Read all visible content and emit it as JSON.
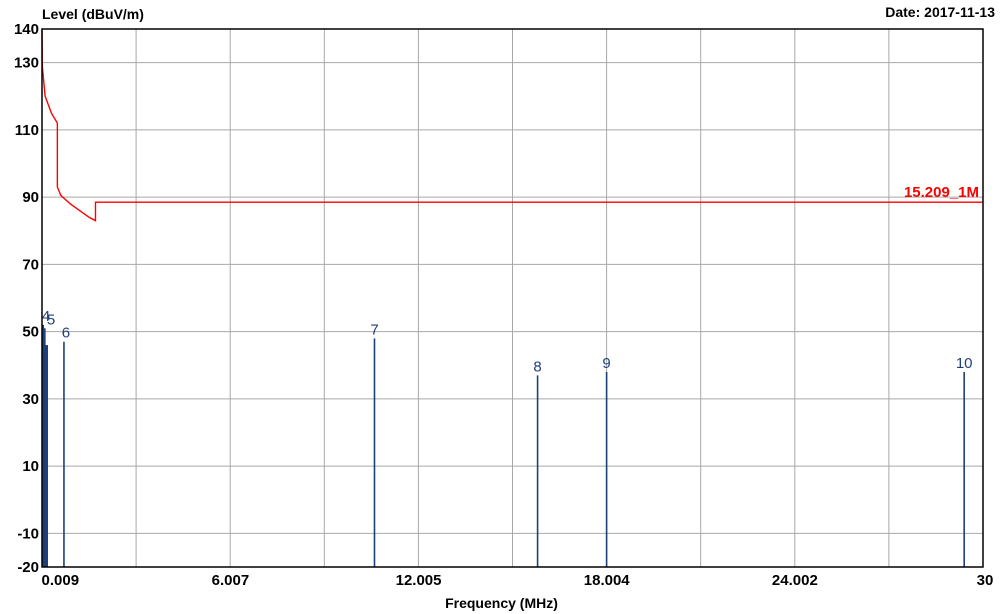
{
  "chart_data": {
    "type": "line",
    "ylabel": "Level (dBuV/m)",
    "xlabel": "Frequency (MHz)",
    "date_label": "Date:",
    "date": "2017-11-13",
    "xlim": [
      0,
      30
    ],
    "ylim": [
      -20,
      140
    ],
    "x_ticks": [
      {
        "value": 0.009,
        "label": "0.009"
      },
      {
        "value": 6.007,
        "label": "6.007"
      },
      {
        "value": 12.005,
        "label": "12.005"
      },
      {
        "value": 18.004,
        "label": "18.004"
      },
      {
        "value": 24.002,
        "label": "24.002"
      },
      {
        "value": 30,
        "label": "30"
      }
    ],
    "y_ticks": [
      {
        "value": -20,
        "label": "-20"
      },
      {
        "value": -10,
        "label": "-10"
      },
      {
        "value": 10,
        "label": "10"
      },
      {
        "value": 30,
        "label": "30"
      },
      {
        "value": 50,
        "label": "50"
      },
      {
        "value": 70,
        "label": "70"
      },
      {
        "value": 90,
        "label": "90"
      },
      {
        "value": 110,
        "label": "110"
      },
      {
        "value": 130,
        "label": "130"
      },
      {
        "value": 140,
        "label": "140"
      }
    ],
    "grid": true,
    "limit_line": {
      "name": "15.209_1M",
      "color": "#ff0000",
      "points": [
        [
          0.0,
          140
        ],
        [
          0.009,
          129
        ],
        [
          0.1,
          120
        ],
        [
          0.3,
          115
        ],
        [
          0.49,
          112
        ],
        [
          0.49,
          93
        ],
        [
          0.6,
          90.5
        ],
        [
          0.9,
          88
        ],
        [
          1.2,
          86
        ],
        [
          1.5,
          84
        ],
        [
          1.705,
          83
        ],
        [
          1.705,
          88.5
        ],
        [
          30,
          88.5
        ]
      ]
    },
    "markers": [
      {
        "label": "4",
        "x": 0.04,
        "y": 52
      },
      {
        "label": "5",
        "x": 0.09,
        "y": 51
      },
      {
        "label": "6",
        "x": 0.7,
        "y": 47
      },
      {
        "label": "7",
        "x": 10.6,
        "y": 48
      },
      {
        "label": "8",
        "x": 15.8,
        "y": 37
      },
      {
        "label": "9",
        "x": 18.0,
        "y": 38
      },
      {
        "label": "10",
        "x": 29.4,
        "y": 38
      }
    ],
    "marker_color": "#1f3f7a"
  }
}
